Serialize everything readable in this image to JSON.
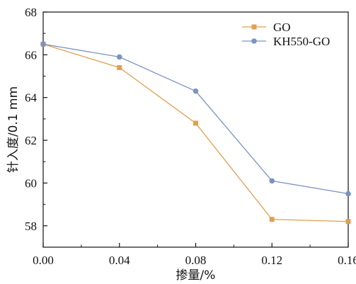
{
  "chart_data": {
    "type": "line",
    "xlabel": "掺量/%",
    "ylabel": "针入度/0.1 mm",
    "x": [
      0.0,
      0.04,
      0.08,
      0.12,
      0.16
    ],
    "x_tick_labels": [
      "0.00",
      "0.04",
      "0.08",
      "0.12",
      "0.16"
    ],
    "y_ticks": [
      58,
      60,
      62,
      64,
      66,
      68
    ],
    "y_tick_labels": [
      "58",
      "60",
      "62",
      "64",
      "66",
      "68"
    ],
    "xlim": [
      0.0,
      0.16
    ],
    "ylim": [
      57,
      68
    ],
    "grid": false,
    "legend_position": "top-right",
    "series": [
      {
        "name": "GO",
        "marker": "square",
        "color": "#E0A050",
        "values": [
          66.5,
          65.4,
          62.8,
          58.3,
          58.2
        ]
      },
      {
        "name": "KH550-GO",
        "marker": "circle",
        "color": "#7A93C2",
        "values": [
          66.5,
          65.9,
          64.3,
          60.1,
          59.5
        ]
      }
    ]
  }
}
